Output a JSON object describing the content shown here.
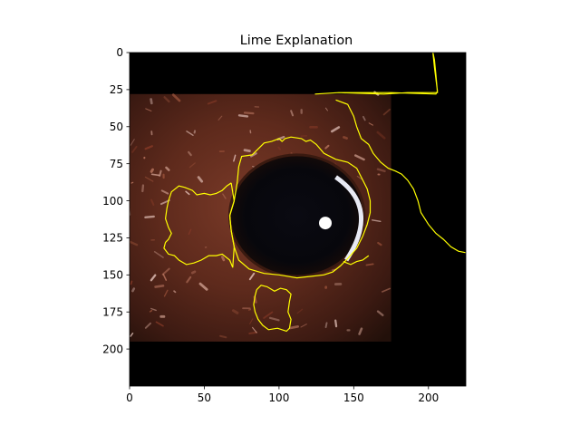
{
  "chart_data": {
    "type": "image",
    "title": "Lime Explanation",
    "xlabel": "",
    "ylabel": "",
    "xlim": [
      0,
      225
    ],
    "ylim": [
      225,
      0
    ],
    "x_ticks": [
      0,
      50,
      100,
      150,
      200
    ],
    "y_ticks": [
      0,
      25,
      50,
      75,
      100,
      125,
      150,
      175,
      200
    ],
    "grid": false,
    "legend": "none",
    "image_content": "close-up of a dog's eye with reddish-brown fur; black regions masked out",
    "boundary_color": "#ffff00",
    "background_color": "#000000",
    "photo_extent": {
      "x": [
        0,
        175
      ],
      "y": [
        28,
        195
      ]
    },
    "boundaries": [
      {
        "name": "eye-region",
        "points": [
          [
            73,
            77
          ],
          [
            75,
            70
          ],
          [
            82,
            69
          ],
          [
            87,
            64
          ],
          [
            90,
            61
          ],
          [
            95,
            60
          ],
          [
            100,
            58
          ],
          [
            102,
            60
          ],
          [
            104,
            58
          ],
          [
            108,
            57
          ],
          [
            115,
            58
          ],
          [
            118,
            60
          ],
          [
            121,
            59
          ],
          [
            125,
            62
          ],
          [
            130,
            68
          ],
          [
            138,
            72
          ],
          [
            146,
            74
          ],
          [
            152,
            78
          ],
          [
            155,
            84
          ],
          [
            159,
            92
          ],
          [
            161,
            100
          ],
          [
            161,
            108
          ],
          [
            159,
            116
          ],
          [
            156,
            124
          ],
          [
            152,
            132
          ],
          [
            146,
            139
          ],
          [
            141,
            144
          ],
          [
            136,
            148
          ],
          [
            130,
            150
          ],
          [
            121,
            151
          ],
          [
            112,
            152
          ],
          [
            100,
            150
          ],
          [
            90,
            149
          ],
          [
            80,
            146
          ],
          [
            73,
            140
          ],
          [
            70,
            131
          ],
          [
            68,
            120
          ],
          [
            67,
            110
          ],
          [
            70,
            100
          ],
          [
            72,
            88
          ],
          [
            73,
            77
          ]
        ]
      },
      {
        "name": "upper-right-region",
        "points": [
          [
            124,
            28
          ],
          [
            140,
            27
          ],
          [
            170,
            28
          ],
          [
            186,
            27
          ],
          [
            206,
            27
          ],
          [
            205,
            15
          ],
          [
            204,
            5
          ],
          [
            203,
            0
          ],
          [
            204,
            10
          ],
          [
            206,
            26
          ],
          [
            205,
            28
          ],
          [
            175,
            27
          ],
          [
            140,
            27
          ],
          [
            124,
            28
          ]
        ]
      },
      {
        "name": "right-edge-region",
        "points": [
          [
            138,
            32
          ],
          [
            146,
            35
          ],
          [
            150,
            43
          ],
          [
            152,
            50
          ],
          [
            155,
            58
          ],
          [
            160,
            62
          ],
          [
            163,
            68
          ],
          [
            168,
            74
          ],
          [
            173,
            78
          ],
          [
            178,
            80
          ],
          [
            182,
            82
          ],
          [
            186,
            86
          ],
          [
            190,
            92
          ],
          [
            193,
            100
          ],
          [
            195,
            108
          ],
          [
            200,
            116
          ],
          [
            205,
            122
          ],
          [
            210,
            126
          ],
          [
            215,
            131
          ],
          [
            220,
            134
          ],
          [
            225,
            135
          ]
        ]
      },
      {
        "name": "left-fur-region",
        "points": [
          [
            68,
            88
          ],
          [
            65,
            90
          ],
          [
            62,
            93
          ],
          [
            58,
            95
          ],
          [
            54,
            96
          ],
          [
            50,
            95
          ],
          [
            45,
            96
          ],
          [
            42,
            93
          ],
          [
            37,
            91
          ],
          [
            33,
            90
          ],
          [
            28,
            94
          ],
          [
            26,
            100
          ],
          [
            25,
            105
          ],
          [
            24,
            112
          ],
          [
            26,
            118
          ],
          [
            28,
            122
          ],
          [
            26,
            126
          ],
          [
            24,
            128
          ],
          [
            23,
            132
          ],
          [
            26,
            136
          ],
          [
            30,
            137
          ],
          [
            33,
            140
          ],
          [
            38,
            143
          ],
          [
            43,
            142
          ],
          [
            48,
            140
          ],
          [
            53,
            137
          ],
          [
            58,
            137
          ],
          [
            62,
            136
          ],
          [
            67,
            140
          ],
          [
            69,
            145
          ],
          [
            70,
            131
          ],
          [
            68,
            120
          ],
          [
            67,
            110
          ],
          [
            70,
            100
          ],
          [
            68,
            88
          ]
        ]
      },
      {
        "name": "lower-fur-region",
        "points": [
          [
            85,
            160
          ],
          [
            88,
            157
          ],
          [
            92,
            158
          ],
          [
            97,
            161
          ],
          [
            101,
            159
          ],
          [
            105,
            160
          ],
          [
            108,
            163
          ],
          [
            107,
            168
          ],
          [
            106,
            175
          ],
          [
            108,
            180
          ],
          [
            107,
            186
          ],
          [
            105,
            188
          ],
          [
            99,
            186
          ],
          [
            93,
            187
          ],
          [
            89,
            184
          ],
          [
            86,
            180
          ],
          [
            84,
            175
          ],
          [
            83,
            170
          ],
          [
            84,
            164
          ],
          [
            85,
            160
          ]
        ]
      },
      {
        "name": "eye-lower-small",
        "points": [
          [
            143,
            141
          ],
          [
            148,
            143
          ],
          [
            152,
            141
          ],
          [
            156,
            140
          ],
          [
            160,
            137
          ]
        ]
      }
    ]
  }
}
